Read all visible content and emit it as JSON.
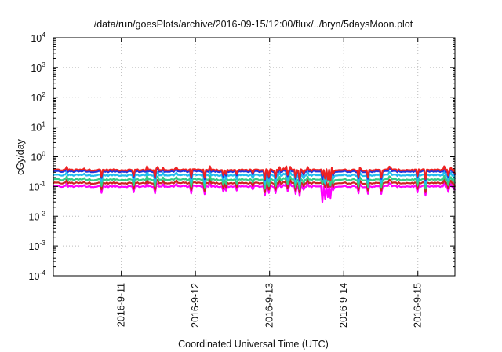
{
  "chart_data": {
    "type": "line",
    "title": "/data/run/goesPlots/archive/2016-09-15/12:00/flux/../bryn/5daysMoon.plot",
    "xlabel": "Coordinated Universal Time (UTC)",
    "ylabel": "cGy/day",
    "y_scale": "log",
    "ylim": [
      0.0001,
      10000
    ],
    "xlim": [
      "2016-09-10 02:00",
      "2016-09-15 12:00"
    ],
    "x_ticks": [
      "2016-9-11",
      "2016-9-12",
      "2016-9-13",
      "2016-9-14",
      "2016-9-15"
    ],
    "y_ticks": [
      {
        "base": "10",
        "exp": "-4"
      },
      {
        "base": "10",
        "exp": "-3"
      },
      {
        "base": "10",
        "exp": "-2"
      },
      {
        "base": "10",
        "exp": "-1"
      },
      {
        "base": "10",
        "exp": "0"
      },
      {
        "base": "10",
        "exp": "1"
      },
      {
        "base": "10",
        "exp": "2"
      },
      {
        "base": "10",
        "exp": "3"
      },
      {
        "base": "10",
        "exp": "4"
      }
    ],
    "grid": true,
    "legend": "none",
    "series": [
      {
        "color": "#ff00ff",
        "baseline": 0.1,
        "dip_min": 0.028
      },
      {
        "color": "#cc2222",
        "baseline": 0.13,
        "dip_min": 0.08
      },
      {
        "color": "#33cc88",
        "baseline": 0.17,
        "dip_min": 0.1
      },
      {
        "color": "#22bbee",
        "baseline": 0.24,
        "dip_min": 0.11
      },
      {
        "color": "#2233dd",
        "baseline": 0.32,
        "dip_min": 0.13
      },
      {
        "color": "#ee2222",
        "baseline": 0.36,
        "dip_min": 0.15
      }
    ]
  }
}
